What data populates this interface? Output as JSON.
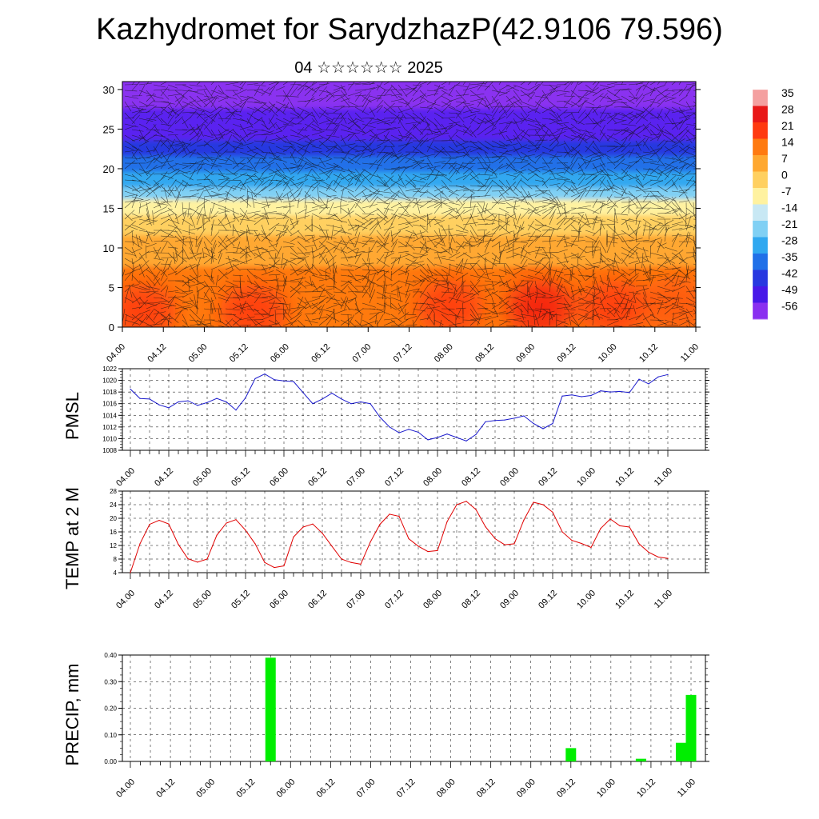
{
  "title": "Kazhydromet for SarydzhazP(42.9106 79.596)",
  "subtitle": "04 ☆☆☆☆☆☆ 2025",
  "colors": {
    "pmsl_line": "#1a1acc",
    "temp_line": "#e00000",
    "precip_bar": "#00ee00",
    "grid": "#000000"
  },
  "chart_data": [
    {
      "type": "heatmap",
      "name": "cross-section",
      "ylim": [
        0,
        31
      ],
      "yticks": [
        0,
        5,
        10,
        15,
        20,
        25,
        30
      ],
      "x_ticks": [
        "04.00",
        "04.12",
        "05.00",
        "05.12",
        "06.00",
        "06.12",
        "07.00",
        "07.12",
        "08.00",
        "08.12",
        "09.00",
        "09.12",
        "10.00",
        "10.12",
        "11.00"
      ],
      "colorbar_labels": [
        "35",
        "28",
        "21",
        "14",
        "7",
        "0",
        "-7",
        "-14",
        "-21",
        "-28",
        "-35",
        "-42",
        "-49",
        "-56"
      ],
      "colorbar_colors": [
        "#f4a0a0",
        "#e81818",
        "#ff3a10",
        "#ff7a10",
        "#ffa830",
        "#ffd060",
        "#fff2a0",
        "#c8e8f4",
        "#80d0f4",
        "#30a8f0",
        "#2070e8",
        "#2838e0",
        "#4818e8",
        "#8a30f0"
      ],
      "bands": [
        {
          "z_top": 31,
          "color": "#8a30f0"
        },
        {
          "z_top": 27,
          "color": "#5a20f0"
        },
        {
          "z_top": 23,
          "color": "#2838e0"
        },
        {
          "z_top": 21,
          "color": "#2070e8"
        },
        {
          "z_top": 19,
          "color": "#30a8f0"
        },
        {
          "z_top": 17,
          "color": "#80d0f4"
        },
        {
          "z_top": 15.5,
          "color": "#fff2a0"
        },
        {
          "z_top": 13.5,
          "color": "#ffd060"
        },
        {
          "z_top": 11,
          "color": "#ffa830"
        },
        {
          "z_top": 7,
          "color": "#ff7a10"
        }
      ],
      "hot_spots": [
        {
          "t": 0.5,
          "z": 2,
          "color": "#ff3a10"
        },
        {
          "t": 3.2,
          "z": 2,
          "color": "#ff3a10"
        },
        {
          "t": 8.0,
          "z": 2.5,
          "color": "#ff3a10"
        },
        {
          "t": 10.2,
          "z": 2.5,
          "color": "#f42010"
        },
        {
          "t": 12.0,
          "z": 2.5,
          "color": "#ff3a10"
        },
        {
          "t": 13.5,
          "z": 3,
          "color": "#ff5a10"
        }
      ]
    },
    {
      "type": "line",
      "name": "pmsl",
      "ylabel": "PMSL",
      "ylim": [
        1008,
        1022
      ],
      "yticks": [
        1008,
        1010,
        1012,
        1014,
        1016,
        1018,
        1020,
        1022
      ],
      "x_ticks": [
        "04.00",
        "04.12",
        "05.00",
        "05.12",
        "06.00",
        "06.12",
        "07.00",
        "07.12",
        "08.00",
        "08.12",
        "09.00",
        "09.12",
        "10.00",
        "10.12",
        "11.00"
      ],
      "x": [
        0,
        3,
        6,
        9,
        12,
        15,
        18,
        21,
        24,
        27,
        30,
        33,
        36,
        39,
        42,
        45,
        48,
        51,
        54,
        57,
        60,
        63,
        66,
        69,
        72,
        75,
        78,
        81,
        84,
        87,
        90,
        93,
        96,
        99,
        102,
        105,
        108,
        111,
        114,
        117,
        120,
        123,
        126,
        129,
        132,
        135,
        138,
        141,
        144,
        147,
        150,
        153,
        156,
        159,
        162,
        165,
        168
      ],
      "values": [
        1018.5,
        1016.9,
        1016.8,
        1015.8,
        1015.3,
        1016.3,
        1016.5,
        1015.7,
        1016.2,
        1016.9,
        1016.3,
        1014.9,
        1017.0,
        1020.3,
        1021.1,
        1020.1,
        1019.9,
        1019.8,
        1017.9,
        1016.0,
        1016.8,
        1017.8,
        1016.8,
        1016.0,
        1016.3,
        1016.0,
        1013.7,
        1012.0,
        1011.0,
        1011.6,
        1011.1,
        1009.8,
        1010.2,
        1010.8,
        1010.2,
        1009.6,
        1010.7,
        1012.9,
        1013.1,
        1013.2,
        1013.5,
        1013.9,
        1012.6,
        1011.7,
        1012.6,
        1017.3,
        1017.5,
        1017.2,
        1017.4,
        1018.2,
        1018.0,
        1018.1,
        1017.9,
        1020.2,
        1019.4,
        1020.6,
        1021.0
      ]
    },
    {
      "type": "line",
      "name": "temp",
      "ylabel": "TEMP at 2 M",
      "ylim": [
        4,
        28
      ],
      "yticks": [
        4,
        8,
        12,
        16,
        20,
        24,
        28
      ],
      "x_ticks": [
        "04.00",
        "04.12",
        "05.00",
        "05.12",
        "06.00",
        "06.12",
        "07.00",
        "07.12",
        "08.00",
        "08.12",
        "09.00",
        "09.12",
        "10.00",
        "10.12",
        "11.00"
      ],
      "x": [
        0,
        3,
        6,
        9,
        12,
        15,
        18,
        21,
        24,
        27,
        30,
        33,
        36,
        39,
        42,
        45,
        48,
        51,
        54,
        57,
        60,
        63,
        66,
        69,
        72,
        75,
        78,
        81,
        84,
        87,
        90,
        93,
        96,
        99,
        102,
        105,
        108,
        111,
        114,
        117,
        120,
        123,
        126,
        129,
        132,
        135,
        138,
        141,
        144,
        147,
        150,
        153,
        156,
        159,
        162,
        165,
        168
      ],
      "values": [
        4.0,
        12.5,
        18.2,
        19.4,
        18.3,
        12.3,
        8.1,
        7.1,
        8.0,
        15.0,
        18.6,
        19.6,
        16.5,
        12.5,
        7.0,
        5.5,
        6.0,
        14.5,
        17.4,
        18.3,
        15.6,
        11.8,
        8.0,
        7.0,
        6.5,
        13.0,
        18.2,
        21.2,
        20.6,
        14.0,
        11.8,
        10.2,
        10.5,
        19.0,
        24.0,
        25.0,
        22.6,
        17.5,
        14.0,
        12.2,
        12.5,
        19.5,
        24.7,
        24.0,
        21.8,
        16.0,
        13.5,
        12.6,
        11.4,
        17.0,
        19.8,
        17.8,
        17.4,
        12.5,
        10.0,
        8.6,
        8.2
      ]
    },
    {
      "type": "bar",
      "name": "precip",
      "ylabel": "PRECIP, mm",
      "ylim": [
        0,
        0.4
      ],
      "yticks": [
        "0.00",
        "0.10",
        "0.20",
        "0.30",
        "0.40"
      ],
      "x_ticks": [
        "04.00",
        "04.12",
        "05.00",
        "05.12",
        "06.00",
        "06.12",
        "07.00",
        "07.12",
        "08.00",
        "08.12",
        "09.00",
        "09.12",
        "10.00",
        "10.12",
        "11.00"
      ],
      "bars": [
        {
          "x": 42,
          "value": 0.39
        },
        {
          "x": 132,
          "value": 0.05
        },
        {
          "x": 153,
          "value": 0.01
        },
        {
          "x": 165,
          "value": 0.07
        },
        {
          "x": 168,
          "value": 0.25
        }
      ]
    }
  ]
}
